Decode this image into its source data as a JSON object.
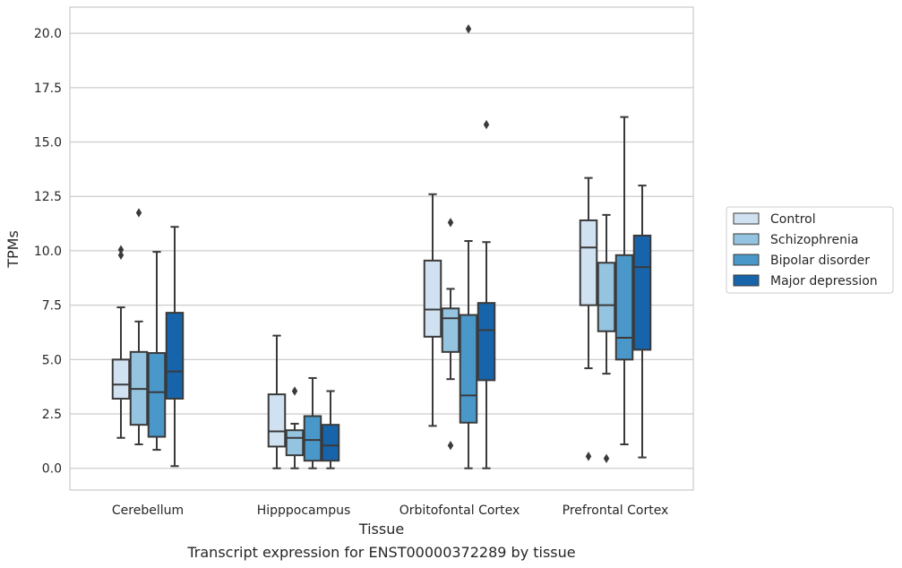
{
  "chart_data": {
    "type": "boxplot",
    "caption": "Transcript expression for ENST00000372289 by tissue",
    "xlabel": "Tissue",
    "ylabel": "TPMs",
    "ylim": [
      -1.0,
      21.2
    ],
    "yticks": [
      "0.0",
      "2.5",
      "5.0",
      "7.5",
      "10.0",
      "12.5",
      "15.0",
      "17.5",
      "20.0"
    ],
    "grid": "horizontal",
    "legend_position": "right",
    "categories": [
      "Cerebellum",
      "Hipppocampus",
      "Orbitofontal Cortex",
      "Prefrontal Cortex"
    ],
    "series": [
      {
        "name": "Control",
        "color": "#d0e1f2",
        "boxes": [
          {
            "whislo": 1.4,
            "q1": 3.2,
            "med": 3.85,
            "q3": 5.0,
            "whishi": 7.4,
            "fliers": [
              9.8,
              10.05
            ]
          },
          {
            "whislo": 0.0,
            "q1": 1.0,
            "med": 1.7,
            "q3": 3.4,
            "whishi": 6.1,
            "fliers": []
          },
          {
            "whislo": 1.95,
            "q1": 6.05,
            "med": 7.3,
            "q3": 9.55,
            "whishi": 12.6,
            "fliers": []
          },
          {
            "whislo": 4.6,
            "q1": 7.5,
            "med": 10.15,
            "q3": 11.4,
            "whishi": 13.35,
            "fliers": [
              0.55
            ]
          }
        ]
      },
      {
        "name": "Schizophrenia",
        "color": "#94c4df",
        "boxes": [
          {
            "whislo": 1.1,
            "q1": 2.0,
            "med": 3.65,
            "q3": 5.35,
            "whishi": 6.75,
            "fliers": [
              11.75
            ]
          },
          {
            "whislo": 0.0,
            "q1": 0.6,
            "med": 1.4,
            "q3": 1.75,
            "whishi": 2.05,
            "fliers": [
              3.55
            ]
          },
          {
            "whislo": 4.1,
            "q1": 5.35,
            "med": 6.9,
            "q3": 7.35,
            "whishi": 8.25,
            "fliers": [
              11.3,
              1.05
            ]
          },
          {
            "whislo": 4.35,
            "q1": 6.3,
            "med": 7.5,
            "q3": 9.45,
            "whishi": 11.65,
            "fliers": [
              0.45
            ]
          }
        ]
      },
      {
        "name": "Bipolar disorder",
        "color": "#4a98c9",
        "boxes": [
          {
            "whislo": 0.85,
            "q1": 1.45,
            "med": 3.5,
            "q3": 5.3,
            "whishi": 9.95,
            "fliers": []
          },
          {
            "whislo": 0.0,
            "q1": 0.35,
            "med": 1.3,
            "q3": 2.4,
            "whishi": 4.15,
            "fliers": []
          },
          {
            "whislo": 0.0,
            "q1": 2.1,
            "med": 3.35,
            "q3": 7.05,
            "whishi": 10.45,
            "fliers": [
              20.2
            ]
          },
          {
            "whislo": 1.1,
            "q1": 5.0,
            "med": 6.0,
            "q3": 9.8,
            "whishi": 16.15,
            "fliers": []
          }
        ]
      },
      {
        "name": "Major depression",
        "color": "#1764ab",
        "boxes": [
          {
            "whislo": 0.1,
            "q1": 3.2,
            "med": 4.45,
            "q3": 7.15,
            "whishi": 11.1,
            "fliers": []
          },
          {
            "whislo": 0.0,
            "q1": 0.35,
            "med": 1.05,
            "q3": 2.0,
            "whishi": 3.55,
            "fliers": []
          },
          {
            "whislo": 0.0,
            "q1": 4.05,
            "med": 6.35,
            "q3": 7.6,
            "whishi": 10.4,
            "fliers": [
              15.8
            ]
          },
          {
            "whislo": 0.5,
            "q1": 5.45,
            "med": 9.25,
            "q3": 10.7,
            "whishi": 13.0,
            "fliers": []
          }
        ]
      }
    ]
  }
}
